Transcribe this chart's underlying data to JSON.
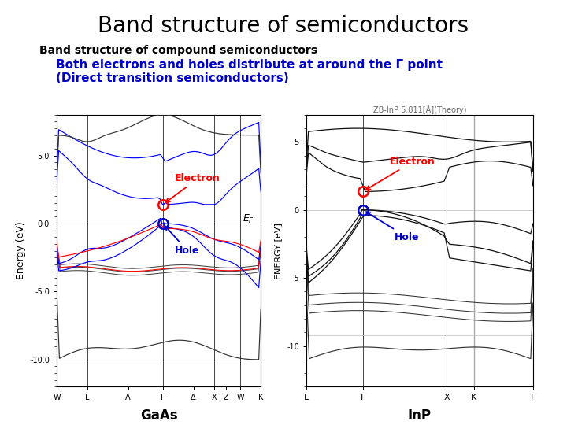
{
  "title": "Band structure of semiconductors",
  "subtitle1": "Band structure of compound semiconductors",
  "subtitle2": "    Both electrons and holes distribute at around the Γ point",
  "subtitle3": "    (Direct transition semiconductors)",
  "title_fontsize": 20,
  "subtitle1_fontsize": 10,
  "subtitle2_fontsize": 11,
  "subtitle3_fontsize": 11,
  "subtitle_color": "#0000cc",
  "subtitle1_color": "#000000",
  "background_color": "#ffffff",
  "gaas_label": "GaAs",
  "inp_label": "InP",
  "gaas_kpts": [
    0.0,
    0.15,
    0.35,
    0.52,
    0.67,
    0.77,
    0.83,
    0.9,
    1.0
  ],
  "gaas_kpt_labels": [
    "W",
    "L",
    "Λ",
    "Γ",
    "Δ",
    "X",
    "Z",
    "W",
    "K"
  ],
  "inp_kpts": [
    0.0,
    0.25,
    0.62,
    0.74,
    1.0
  ],
  "inp_kpt_labels": [
    "L",
    "Γ",
    "X",
    "K",
    "Γ"
  ],
  "inp_title": "ZB-InP 5.811[Å](Theory)"
}
